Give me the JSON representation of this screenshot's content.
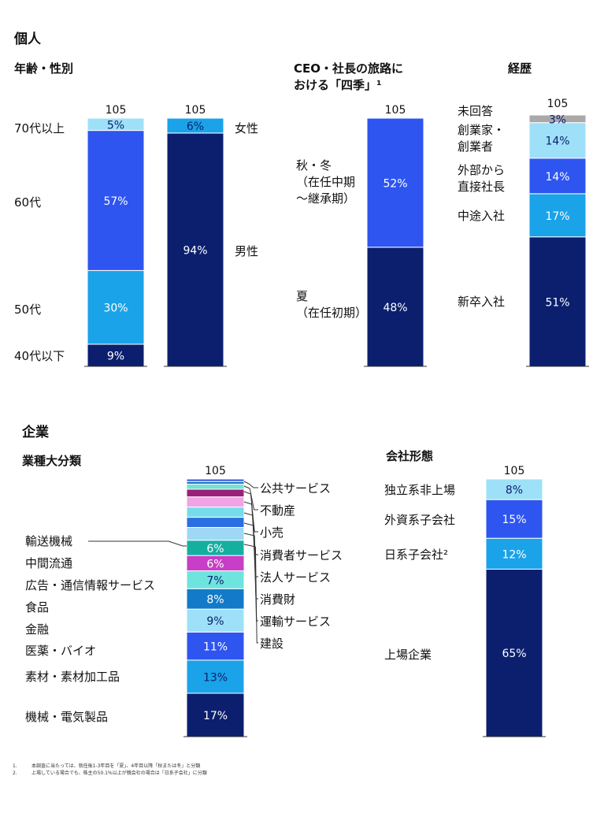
{
  "sections": {
    "individual": "個人",
    "company": "企業"
  },
  "colors": {
    "navy": "#0B1F6E",
    "blue": "#2E55F0",
    "mid": "#1AA3E8",
    "light": "#9EE0F8",
    "gray": "#A9A9A9"
  },
  "chart_data": [
    {
      "type": "bar",
      "title": "年齢・性別",
      "total_label": "105",
      "series": [
        {
          "name": "40代以下",
          "values": [
            9
          ]
        },
        {
          "name": "50代",
          "values": [
            30
          ]
        },
        {
          "name": "60代",
          "values": [
            57
          ]
        },
        {
          "name": "70代以上",
          "values": [
            5
          ]
        }
      ],
      "value_labels": [
        "9%",
        "30%",
        "57%",
        "5%"
      ]
    },
    {
      "type": "bar",
      "title": "",
      "total_label": "105",
      "series": [
        {
          "name": "男性",
          "values": [
            94
          ]
        },
        {
          "name": "女性",
          "values": [
            6
          ]
        }
      ],
      "value_labels": [
        "94%",
        "6%"
      ]
    },
    {
      "type": "bar",
      "title": "CEO・社長の旅路における「四季」¹",
      "title_lines": [
        "CEO・社長の旅路に",
        "おける「四季」¹"
      ],
      "total_label": "105",
      "series": [
        {
          "name": "夏（在任初期）",
          "lines": [
            "夏",
            "（在任初期）"
          ],
          "values": [
            48
          ]
        },
        {
          "name": "秋・冬（在任中期～継承期）",
          "lines": [
            "秋・冬",
            "（在任中期",
            "～継承期）"
          ],
          "values": [
            52
          ]
        }
      ],
      "value_labels": [
        "48%",
        "52%"
      ]
    },
    {
      "type": "bar",
      "title": "経歴",
      "total_label": "105",
      "series": [
        {
          "name": "新卒入社",
          "lines": [
            "新卒入社"
          ],
          "values": [
            51
          ]
        },
        {
          "name": "中途入社",
          "lines": [
            "中途入社"
          ],
          "values": [
            17
          ]
        },
        {
          "name": "外部から直接社長",
          "lines": [
            "外部から",
            "直接社長"
          ],
          "values": [
            14
          ]
        },
        {
          "name": "創業家・創業者",
          "lines": [
            "創業家・",
            "創業者"
          ],
          "values": [
            14
          ]
        },
        {
          "name": "未回答",
          "lines": [
            "未回答"
          ],
          "values": [
            3
          ]
        }
      ],
      "value_labels": [
        "51%",
        "17%",
        "14%",
        "14%",
        "3%"
      ]
    },
    {
      "type": "bar",
      "title": "業種大分類",
      "total_label": "105",
      "series": [
        {
          "name": "機械・電気製品",
          "values": [
            17
          ],
          "label": "17%"
        },
        {
          "name": "素材・素材加工品",
          "values": [
            13
          ],
          "label": "13%"
        },
        {
          "name": "医薬・バイオ",
          "values": [
            11
          ],
          "label": "11%"
        },
        {
          "name": "金融",
          "values": [
            9
          ],
          "label": "9%"
        },
        {
          "name": "食品",
          "values": [
            8
          ],
          "label": "8%"
        },
        {
          "name": "広告・通信情報サービス",
          "values": [
            7
          ],
          "label": "7%"
        },
        {
          "name": "中間流通",
          "values": [
            6
          ],
          "label": "6%"
        },
        {
          "name": "輸送機械",
          "values": [
            6
          ],
          "label": "6%"
        },
        {
          "name": "建設",
          "values": [
            5
          ],
          "label": ""
        },
        {
          "name": "運輸サービス",
          "values": [
            4
          ],
          "label": ""
        },
        {
          "name": "消費財",
          "values": [
            4
          ],
          "label": ""
        },
        {
          "name": "法人サービス",
          "values": [
            4
          ],
          "label": ""
        },
        {
          "name": "消費者サービス",
          "values": [
            3
          ],
          "label": ""
        },
        {
          "name": "小売",
          "values": [
            2
          ],
          "label": ""
        },
        {
          "name": "不動産",
          "values": [
            1
          ],
          "label": ""
        },
        {
          "name": "公共サービス",
          "values": [
            1
          ],
          "label": ""
        }
      ]
    },
    {
      "type": "bar",
      "title": "会社形態",
      "total_label": "105",
      "series": [
        {
          "name": "上場企業",
          "values": [
            65
          ]
        },
        {
          "name": "日系子会社²",
          "values": [
            12
          ]
        },
        {
          "name": "外資系子会社",
          "values": [
            15
          ]
        },
        {
          "name": "独立系非上場",
          "values": [
            8
          ]
        }
      ],
      "value_labels": [
        "65%",
        "12%",
        "15%",
        "8%"
      ]
    }
  ],
  "footnotes": [
    {
      "num": "1.",
      "text": "本調査に当たっては、就任後1-3年目を「夏」、4年目以降「秋または冬」と分類"
    },
    {
      "num": "2.",
      "text": "上場している場合でも、株主の50.1%以上が親会社の場合は「日系子会社」に分類"
    }
  ]
}
